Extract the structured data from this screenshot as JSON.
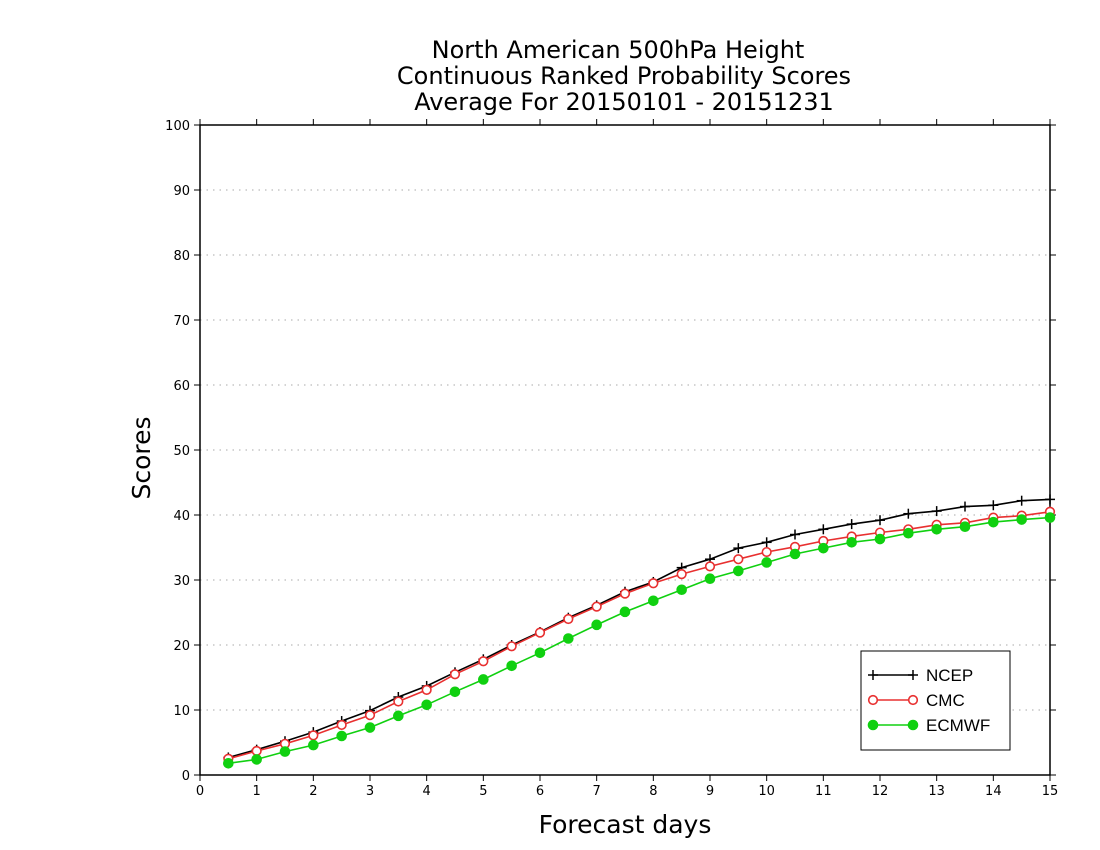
{
  "chart_data": {
    "type": "line",
    "title": [
      "North American 500hPa Height",
      "Continuous Ranked Probability Scores",
      "Average For 20150101 - 20151231"
    ],
    "xlabel": "Forecast days",
    "ylabel": "Scores",
    "xlim": [
      0,
      15
    ],
    "ylim": [
      0,
      100
    ],
    "xticks": [
      0,
      1,
      2,
      3,
      4,
      5,
      6,
      7,
      8,
      9,
      10,
      11,
      12,
      13,
      14,
      15
    ],
    "yticks": [
      0,
      10,
      20,
      30,
      40,
      50,
      60,
      70,
      80,
      90,
      100
    ],
    "grid": "horizontal dotted",
    "legend_position": "bottom-right",
    "x": [
      0.5,
      1,
      1.5,
      2,
      2.5,
      3,
      3.5,
      4,
      4.5,
      5,
      5.5,
      6,
      6.5,
      7,
      7.5,
      8,
      8.5,
      9,
      9.5,
      10,
      10.5,
      11,
      11.5,
      12,
      12.5,
      13,
      13.5,
      14,
      14.5,
      15
    ],
    "series": [
      {
        "name": "NCEP",
        "color": "#000000",
        "marker": "plus",
        "values": [
          2.7,
          3.9,
          5.2,
          6.6,
          8.3,
          9.9,
          12.0,
          13.7,
          15.8,
          17.8,
          20.0,
          22.0,
          24.2,
          26.1,
          28.2,
          29.7,
          31.9,
          33.2,
          34.9,
          35.8,
          37.0,
          37.8,
          38.6,
          39.2,
          40.2,
          40.6,
          41.3,
          41.5,
          42.2,
          42.4
        ]
      },
      {
        "name": "CMC",
        "color": "#e83030",
        "marker": "open-circle",
        "values": [
          2.5,
          3.7,
          4.8,
          6.1,
          7.7,
          9.2,
          11.3,
          13.1,
          15.5,
          17.5,
          19.8,
          21.9,
          24.0,
          25.9,
          27.9,
          29.5,
          30.9,
          32.1,
          33.2,
          34.3,
          35.1,
          36.0,
          36.7,
          37.3,
          37.8,
          38.5,
          38.8,
          39.6,
          39.9,
          40.5
        ]
      },
      {
        "name": "ECMWF",
        "color": "#10d010",
        "marker": "filled-circle",
        "values": [
          1.8,
          2.4,
          3.6,
          4.6,
          6.0,
          7.3,
          9.1,
          10.8,
          12.8,
          14.7,
          16.8,
          18.8,
          21.0,
          23.1,
          25.1,
          26.8,
          28.5,
          30.2,
          31.4,
          32.7,
          34.0,
          34.9,
          35.8,
          36.3,
          37.2,
          37.8,
          38.2,
          38.9,
          39.3,
          39.6
        ]
      }
    ]
  }
}
